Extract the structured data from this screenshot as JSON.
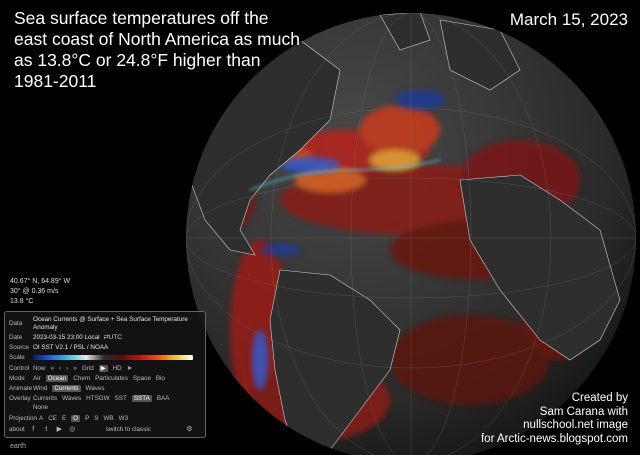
{
  "title": "Sea surface temperatures off the east coast of North America as much as 13.8°C or 24.8°F higher than 1981-2011",
  "date": "March 15, 2023",
  "credit": [
    "Created by",
    "Sam Carana with",
    "nullschool.net image",
    "for Arctic-news.blogspot.com"
  ],
  "readout": {
    "coords": "40.67° N, 64.89° W",
    "current": "30° @ 0.36  m/s",
    "temp": "13.8  °C"
  },
  "panel": {
    "data_label": "Data",
    "data_value": "Ocean Currents @ Surface + Sea Surface Temperature Anomaly",
    "date_label": "Date",
    "date_value": "2023-03-15 23:00 Local",
    "date_utc": "⇄UTC",
    "source_label": "Source",
    "source_value": "OI SST V2.1 / PSL / NOAA",
    "scale_label": "Scale",
    "control_label": "Control",
    "control_items": [
      "Now",
      "«",
      "‹",
      "›",
      "»",
      "Grid",
      "HD"
    ],
    "mode_label": "Mode",
    "mode_items": [
      "Air",
      "Ocean",
      "Chem",
      "Particulates",
      "Space",
      "Bio"
    ],
    "mode_active": "Ocean",
    "animate_label": "Animate",
    "animate_items": [
      "Wind",
      "Currents",
      "Waves"
    ],
    "animate_active": "Currents",
    "overlay_label": "Overlay",
    "overlay_items": [
      "Currents",
      "Waves",
      "HTSGW",
      "SST",
      "SSTA",
      "BAA"
    ],
    "overlay_active": "SSTA",
    "overlay_extra": "None",
    "projection_label": "Projection",
    "projection_items": [
      "A",
      "CE",
      "E",
      "O",
      "P",
      "S",
      "WB",
      "W3"
    ],
    "projection_active": "O",
    "about": "about",
    "switch": "switch to classic",
    "earth": "earth"
  },
  "colors": {
    "background": "#000000",
    "ocean_base": "#333333",
    "warm": "#c81e14",
    "cold": "#2a5fd8",
    "panel_bg": "#141416"
  }
}
